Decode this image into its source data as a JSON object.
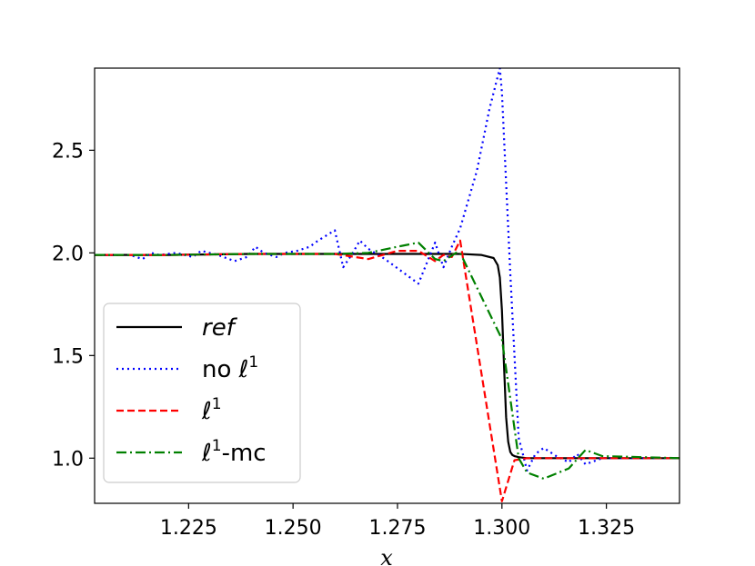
{
  "chart_data": {
    "type": "line",
    "title": "",
    "xlabel": "x",
    "ylabel": "",
    "xlim": [
      1.2025,
      1.3425
    ],
    "ylim": [
      0.78,
      2.9
    ],
    "xticks": [
      1.225,
      1.25,
      1.275,
      1.3,
      1.325
    ],
    "xtick_labels": [
      "1.225",
      "1.250",
      "1.275",
      "1.300",
      "1.325"
    ],
    "yticks": [
      1.0,
      1.5,
      2.0,
      2.5
    ],
    "ytick_labels": [
      "1.0",
      "1.5",
      "2.0",
      "2.5"
    ],
    "grid": false,
    "legend_position": "lower-left",
    "series": [
      {
        "name": "ref",
        "color": "#000000",
        "style": "solid",
        "x": [
          1.2025,
          1.22,
          1.24,
          1.26,
          1.28,
          1.29,
          1.295,
          1.298,
          1.299,
          1.2995,
          1.3,
          1.3005,
          1.301,
          1.3015,
          1.302,
          1.3025,
          1.303,
          1.304,
          1.306,
          1.31,
          1.32,
          1.3425
        ],
        "y": [
          1.99,
          1.99,
          1.995,
          1.995,
          1.995,
          1.995,
          1.99,
          1.975,
          1.94,
          1.88,
          1.72,
          1.45,
          1.2,
          1.08,
          1.03,
          1.015,
          1.01,
          1.005,
          1.0,
          1.0,
          1.0,
          1.0
        ]
      },
      {
        "name": "no ℓ¹",
        "color": "#0000ff",
        "style": "dotted",
        "x": [
          1.2025,
          1.211,
          1.214,
          1.216,
          1.218,
          1.222,
          1.226,
          1.228,
          1.232,
          1.236,
          1.239,
          1.241,
          1.243,
          1.246,
          1.248,
          1.251,
          1.254,
          1.256,
          1.26,
          1.262,
          1.264,
          1.266,
          1.268,
          1.272,
          1.276,
          1.28,
          1.284,
          1.286,
          1.288,
          1.29,
          1.294,
          1.297,
          1.2995,
          1.3,
          1.302,
          1.304,
          1.306,
          1.308,
          1.31,
          1.313,
          1.316,
          1.318,
          1.32,
          1.324,
          1.3425
        ],
        "y": [
          1.99,
          1.99,
          1.97,
          2.0,
          1.99,
          2.0,
          1.98,
          2.01,
          1.99,
          1.96,
          1.98,
          2.03,
          2.0,
          1.98,
          2.0,
          2.01,
          2.03,
          2.06,
          2.11,
          1.93,
          1.99,
          2.06,
          2.02,
          1.97,
          1.91,
          1.85,
          2.05,
          1.93,
          2.03,
          2.12,
          2.4,
          2.7,
          2.9,
          2.78,
          1.9,
          1.1,
          0.94,
          1.02,
          1.05,
          1.01,
          0.98,
          1.02,
          0.97,
          1.0,
          1.0
        ]
      },
      {
        "name": "ℓ¹",
        "color": "#ff0000",
        "style": "dashed",
        "x": [
          1.2025,
          1.22,
          1.24,
          1.26,
          1.268,
          1.275,
          1.28,
          1.284,
          1.286,
          1.288,
          1.29,
          1.3,
          1.303,
          1.306,
          1.31,
          1.32,
          1.3425
        ],
        "y": [
          1.99,
          1.99,
          1.995,
          1.995,
          1.97,
          2.01,
          2.01,
          1.96,
          1.99,
          1.98,
          2.06,
          0.79,
          0.99,
          1.0,
          1.0,
          1.0,
          1.0
        ]
      },
      {
        "name": "ℓ¹-mc",
        "color": "#008000",
        "style": "dashdot",
        "x": [
          1.2025,
          1.22,
          1.24,
          1.26,
          1.268,
          1.275,
          1.28,
          1.284,
          1.286,
          1.289,
          1.29,
          1.3,
          1.304,
          1.306,
          1.31,
          1.316,
          1.32,
          1.324,
          1.3425
        ],
        "y": [
          1.99,
          1.99,
          1.995,
          1.995,
          2.0,
          2.03,
          2.05,
          1.97,
          1.96,
          2.0,
          2.0,
          1.58,
          1.0,
          0.93,
          0.9,
          0.95,
          1.04,
          1.01,
          1.0
        ]
      }
    ]
  },
  "legend": {
    "items": [
      {
        "base": "ref",
        "sup": "",
        "suffix": "",
        "italic": true,
        "color": "#000000",
        "style": "solid"
      },
      {
        "base": "no ℓ",
        "sup": "1",
        "suffix": "",
        "italic": false,
        "color": "#0000ff",
        "style": "dotted"
      },
      {
        "base": "ℓ",
        "sup": "1",
        "suffix": "",
        "italic": false,
        "color": "#ff0000",
        "style": "dashed"
      },
      {
        "base": "ℓ",
        "sup": "1",
        "suffix": "-mc",
        "italic": false,
        "color": "#008000",
        "style": "dashdot"
      }
    ]
  }
}
